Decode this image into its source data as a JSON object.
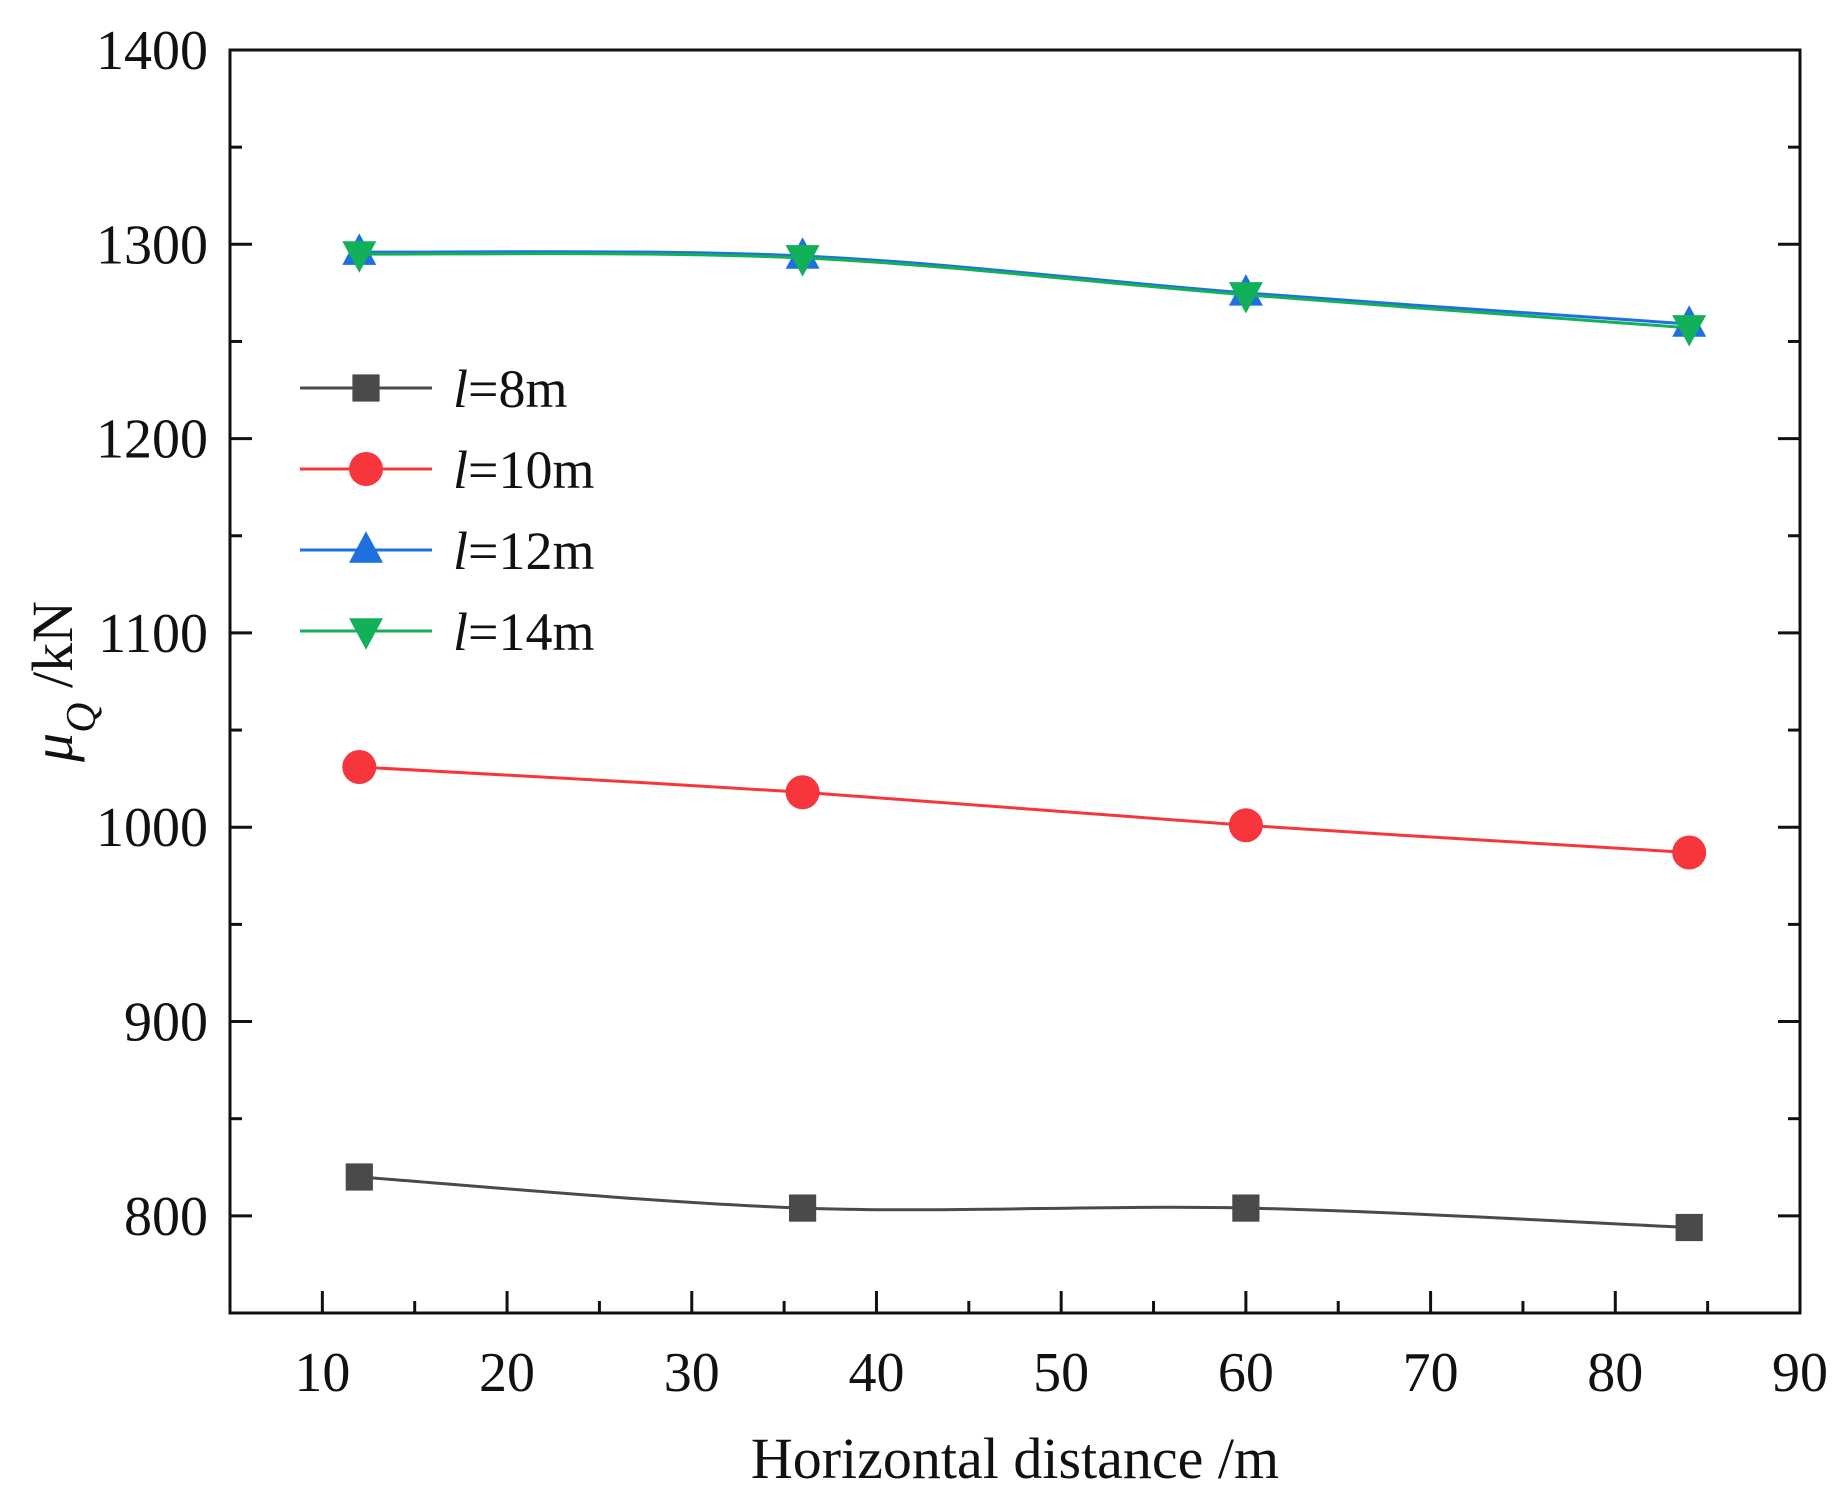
{
  "chart_data": {
    "type": "line",
    "title": "",
    "xlabel": "Horizontal distance /m",
    "ylabel_symbol": "μ",
    "ylabel_subscript": "Q",
    "ylabel_unit": " /kN",
    "xlim": [
      5,
      90
    ],
    "ylim": [
      750,
      1400
    ],
    "xticks": [
      10,
      20,
      30,
      40,
      50,
      60,
      70,
      80,
      90
    ],
    "yticks": [
      800,
      900,
      1000,
      1100,
      1200,
      1300,
      1400
    ],
    "x": [
      12,
      36,
      60,
      84
    ],
    "legend_position": "upper-left",
    "series": [
      {
        "name": "l=8m",
        "label_var": "l",
        "label_rest": "=8m",
        "color": "#4a4a4a",
        "marker": "square",
        "values": [
          820,
          804,
          804,
          794
        ]
      },
      {
        "name": "l=10m",
        "label_var": "l",
        "label_rest": "=10m",
        "color": "#f6353c",
        "marker": "circle",
        "values": [
          1031,
          1018,
          1001,
          987
        ]
      },
      {
        "name": "l=12m",
        "label_var": "l",
        "label_rest": "=12m",
        "color": "#1e6fe0",
        "marker": "triangle-up",
        "values": [
          1296,
          1294,
          1275,
          1259
        ]
      },
      {
        "name": "l=14m",
        "label_var": "l",
        "label_rest": "=14m",
        "color": "#13b05a",
        "marker": "triangle-down",
        "values": [
          1295,
          1293,
          1274,
          1257
        ]
      }
    ]
  }
}
